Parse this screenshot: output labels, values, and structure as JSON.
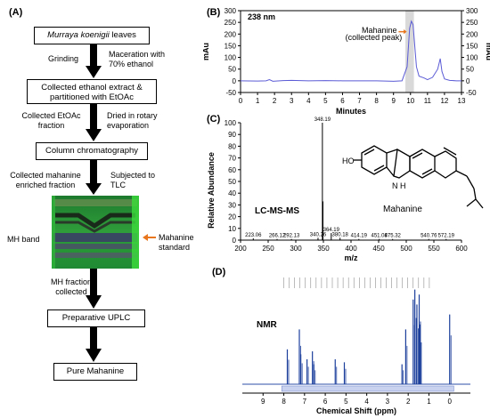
{
  "panelA": {
    "label": "(A)",
    "box1_italic": "Murraya koenigii",
    "box1_rest": " leaves",
    "step1_left": "Grinding",
    "step1_right": "Maceration with 70% ethanol",
    "box2": "Collected ethanol extract & partitioned with EtOAc",
    "step2_left": "Collected EtOAc fraction",
    "step2_right": "Dried in rotary evaporation",
    "box3": "Column chromatography",
    "step3_left": "Collected mahanine enriched fraction",
    "step3_right": "Subjected to TLC",
    "mh_band": "MH band",
    "mahanine_standard": "Mahanine standard",
    "step4_left": "MH fraction collected",
    "box4": "Preparative UPLC",
    "box5": "Pure Mahanine"
  },
  "panelB": {
    "label": "(B)",
    "wavelength": "238 nm",
    "y_label_left": "mAu",
    "y_label_right": "mAu",
    "x_label": "Minutes",
    "annotation": "Mahanine (collected peak)",
    "arrow_color": "#e8761e"
  },
  "panelC": {
    "label": "(C)",
    "y_label": "Relative Abundance",
    "x_label": "m/z",
    "method": "LC-MS-MS",
    "compound": "Mahanine",
    "ho_label": "HO",
    "nh_label": "N\nH"
  },
  "panelD": {
    "label": "(D)",
    "method": "NMR",
    "x_label": "Chemical Shift (ppm)"
  },
  "chart_data": [
    {
      "type": "line",
      "id": "B",
      "title": "238 nm",
      "xlabel": "Minutes",
      "ylabel": "mAu",
      "xlim": [
        0,
        13
      ],
      "ylim": [
        -50,
        300
      ],
      "xticks": [
        0,
        1,
        2,
        3,
        4,
        5,
        6,
        7,
        8,
        9,
        10,
        11,
        12,
        13
      ],
      "yticks": [
        -50,
        0,
        50,
        100,
        150,
        200,
        250,
        300
      ],
      "highlight_x": [
        9.7,
        10.2
      ],
      "series": [
        {
          "color": "#5b5bd6",
          "x": [
            0,
            1,
            1.5,
            1.7,
            1.9,
            2.5,
            3,
            4,
            5,
            6,
            7,
            8,
            9,
            9.5,
            9.8,
            9.95,
            10.05,
            10.15,
            10.25,
            10.35,
            10.5,
            10.8,
            11,
            11.3,
            11.6,
            11.75,
            11.85,
            12,
            12.3,
            12.7,
            13
          ],
          "y": [
            0,
            -1,
            0,
            5,
            -2,
            1,
            2,
            0,
            1,
            0,
            0,
            0,
            -2,
            0,
            60,
            225,
            255,
            240,
            150,
            60,
            20,
            12,
            5,
            15,
            50,
            95,
            40,
            8,
            2,
            0,
            0
          ]
        }
      ]
    },
    {
      "type": "bar",
      "id": "C",
      "xlabel": "m/z",
      "ylabel": "Relative Abundance",
      "xlim": [
        200,
        600
      ],
      "ylim": [
        0,
        100
      ],
      "xticks": [
        200,
        250,
        300,
        350,
        400,
        450,
        500,
        550,
        600
      ],
      "yticks": [
        0,
        10,
        20,
        30,
        40,
        50,
        60,
        70,
        80,
        90,
        100
      ],
      "peaks": [
        {
          "mz": 223.06,
          "intensity": 1.5,
          "label": "223.06"
        },
        {
          "mz": 266.12,
          "intensity": 1,
          "label": "266.12"
        },
        {
          "mz": 292.13,
          "intensity": 1,
          "label": "292.13"
        },
        {
          "mz": 340.26,
          "intensity": 2,
          "label": "340.26"
        },
        {
          "mz": 348.19,
          "intensity": 100,
          "label": "348.19"
        },
        {
          "mz": 349.2,
          "intensity": 33,
          "label": ""
        },
        {
          "mz": 364.19,
          "intensity": 6,
          "label": "364.19"
        },
        {
          "mz": 380.18,
          "intensity": 2,
          "label": "380.18"
        },
        {
          "mz": 414.19,
          "intensity": 1,
          "label": "414.19"
        },
        {
          "mz": 451.08,
          "intensity": 1,
          "label": "451.08"
        },
        {
          "mz": 475.32,
          "intensity": 1,
          "label": "475.32"
        },
        {
          "mz": 540.76,
          "intensity": 1,
          "label": "540.76"
        },
        {
          "mz": 572.19,
          "intensity": 1,
          "label": "572.19"
        }
      ]
    },
    {
      "type": "line",
      "id": "D",
      "xlabel": "Chemical Shift (ppm)",
      "xlim": [
        10,
        -1
      ],
      "xticks": [
        9,
        8,
        7,
        6,
        5,
        4,
        3,
        2,
        1,
        0
      ],
      "peaks": [
        {
          "ppm": 7.83,
          "h": 0.35
        },
        {
          "ppm": 7.25,
          "h": 0.55
        },
        {
          "ppm": 7.18,
          "h": 0.3
        },
        {
          "ppm": 6.88,
          "h": 0.25
        },
        {
          "ppm": 6.62,
          "h": 0.33
        },
        {
          "ppm": 6.55,
          "h": 0.2
        },
        {
          "ppm": 5.52,
          "h": 0.25
        },
        {
          "ppm": 5.08,
          "h": 0.22
        },
        {
          "ppm": 2.3,
          "h": 0.2
        },
        {
          "ppm": 2.12,
          "h": 0.55
        },
        {
          "ppm": 1.76,
          "h": 0.85
        },
        {
          "ppm": 1.68,
          "h": 0.95
        },
        {
          "ppm": 1.58,
          "h": 0.8
        },
        {
          "ppm": 1.47,
          "h": 0.9
        },
        {
          "ppm": 1.43,
          "h": 0.6
        },
        {
          "ppm": 0.0,
          "h": 0.7
        }
      ]
    }
  ]
}
